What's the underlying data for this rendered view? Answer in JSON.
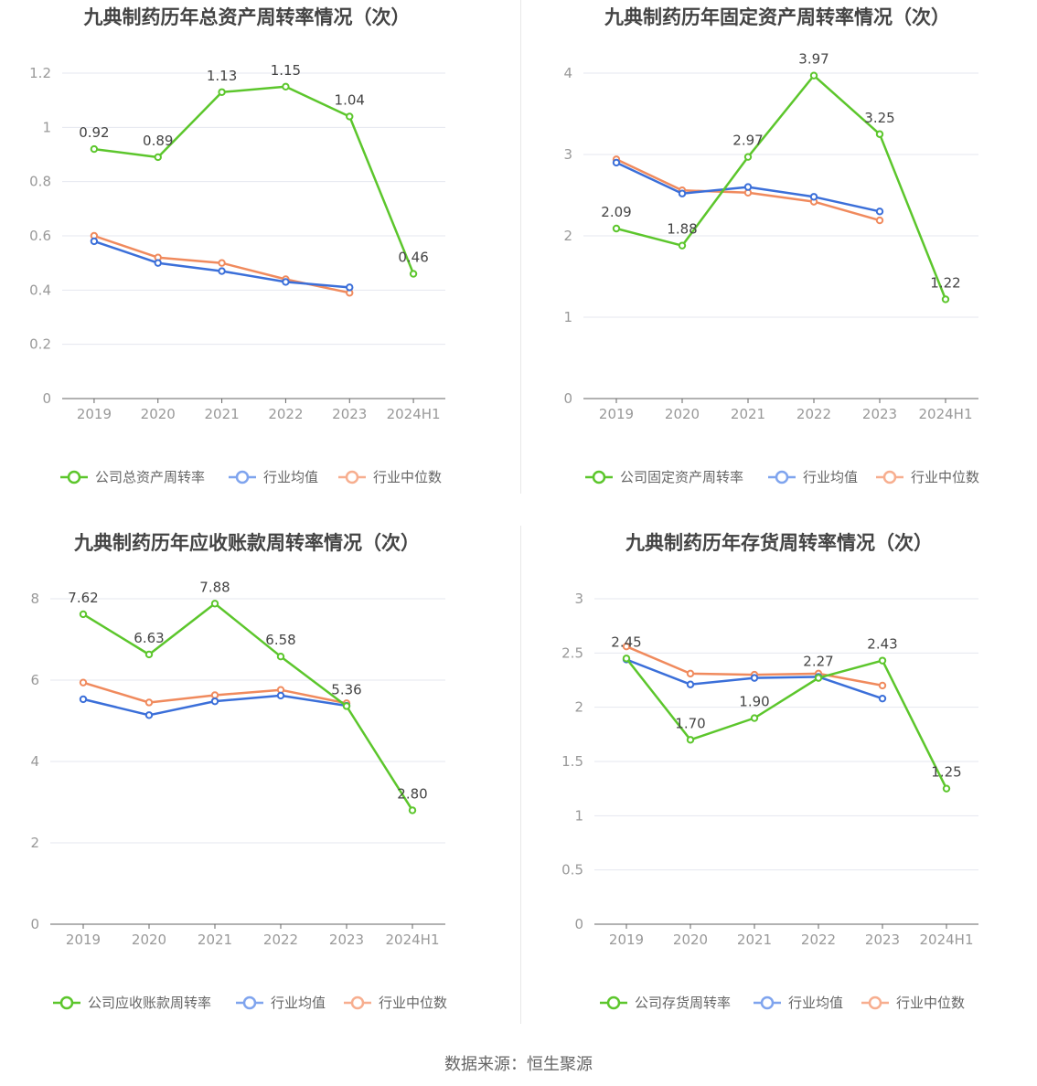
{
  "colors": {
    "company": "#5cc62c",
    "avg": "#3b6fd9",
    "median": "#f08a5d",
    "avg_legend": "#7fa4ee",
    "median_legend": "#f7ae8f",
    "grid": "#e4e7ef",
    "axis": "#666666",
    "tick_text": "#999999",
    "title_text": "#444444",
    "label_text": "#444444"
  },
  "source": "数据来源：恒生聚源",
  "chart_data": [
    {
      "type": "line",
      "title": "九典制药历年总资产周转率情况（次）",
      "categories": [
        "2019",
        "2020",
        "2021",
        "2022",
        "2023",
        "2024H1"
      ],
      "ylim": [
        0,
        1.2
      ],
      "yticks": [
        0,
        0.2,
        0.4,
        0.6,
        0.8,
        1,
        1.2
      ],
      "ytick_labels": [
        "0",
        "0.2",
        "0.4",
        "0.6",
        "0.8",
        "1",
        "1.2"
      ],
      "grid": true,
      "legend_position": "bottom",
      "series": [
        {
          "name": "公司总资产周转率",
          "role": "company",
          "values": [
            0.92,
            0.89,
            1.13,
            1.15,
            1.04,
            0.46
          ],
          "labels": [
            "0.92",
            "0.89",
            "1.13",
            "1.15",
            "1.04",
            "0.46"
          ]
        },
        {
          "name": "行业均值",
          "role": "avg",
          "values": [
            0.58,
            0.5,
            0.47,
            0.43,
            0.41,
            null
          ]
        },
        {
          "name": "行业中位数",
          "role": "median",
          "values": [
            0.6,
            0.52,
            0.5,
            0.44,
            0.39,
            null
          ]
        }
      ]
    },
    {
      "type": "line",
      "title": "九典制药历年固定资产周转率情况（次）",
      "categories": [
        "2019",
        "2020",
        "2021",
        "2022",
        "2023",
        "2024H1"
      ],
      "ylim": [
        0,
        4
      ],
      "yticks": [
        0,
        1,
        2,
        3,
        4
      ],
      "ytick_labels": [
        "0",
        "1",
        "2",
        "3",
        "4"
      ],
      "grid": true,
      "legend_position": "bottom",
      "series": [
        {
          "name": "公司固定资产周转率",
          "role": "company",
          "values": [
            2.09,
            1.88,
            2.97,
            3.97,
            3.25,
            1.22
          ],
          "labels": [
            "2.09",
            "1.88",
            "2.97",
            "3.97",
            "3.25",
            "1.22"
          ]
        },
        {
          "name": "行业均值",
          "role": "avg",
          "values": [
            2.9,
            2.52,
            2.6,
            2.48,
            2.3,
            null
          ]
        },
        {
          "name": "行业中位数",
          "role": "median",
          "values": [
            2.94,
            2.56,
            2.53,
            2.42,
            2.19,
            null
          ]
        }
      ]
    },
    {
      "type": "line",
      "title": "九典制药历年应收账款周转率情况（次）",
      "categories": [
        "2019",
        "2020",
        "2021",
        "2022",
        "2023",
        "2024H1"
      ],
      "ylim": [
        0,
        8
      ],
      "yticks": [
        0,
        2,
        4,
        6,
        8
      ],
      "ytick_labels": [
        "0",
        "2",
        "4",
        "6",
        "8"
      ],
      "grid": true,
      "legend_position": "bottom",
      "series": [
        {
          "name": "公司应收账款周转率",
          "role": "company",
          "values": [
            7.62,
            6.63,
            7.88,
            6.58,
            5.36,
            2.8
          ],
          "labels": [
            "7.62",
            "6.63",
            "7.88",
            "6.58",
            "5.36",
            "2.80"
          ]
        },
        {
          "name": "行业均值",
          "role": "avg",
          "values": [
            5.53,
            5.14,
            5.48,
            5.62,
            5.37,
            null
          ]
        },
        {
          "name": "行业中位数",
          "role": "median",
          "values": [
            5.94,
            5.45,
            5.63,
            5.76,
            5.43,
            null
          ]
        }
      ]
    },
    {
      "type": "line",
      "title": "九典制药历年存货周转率情况（次）",
      "categories": [
        "2019",
        "2020",
        "2021",
        "2022",
        "2023",
        "2024H1"
      ],
      "ylim": [
        0,
        3
      ],
      "yticks": [
        0,
        0.5,
        1,
        1.5,
        2,
        2.5,
        3
      ],
      "ytick_labels": [
        "0",
        "0.5",
        "1",
        "1.5",
        "2",
        "2.5",
        "3"
      ],
      "grid": true,
      "legend_position": "bottom",
      "series": [
        {
          "name": "公司存货周转率",
          "role": "company",
          "values": [
            2.45,
            1.7,
            1.9,
            2.27,
            2.43,
            1.25
          ],
          "labels": [
            "2.45",
            "1.70",
            "1.90",
            "2.27",
            "2.43",
            "1.25"
          ]
        },
        {
          "name": "行业均值",
          "role": "avg",
          "values": [
            2.44,
            2.21,
            2.27,
            2.28,
            2.08,
            null
          ]
        },
        {
          "name": "行业中位数",
          "role": "median",
          "values": [
            2.56,
            2.31,
            2.3,
            2.31,
            2.2,
            null
          ]
        }
      ]
    }
  ]
}
